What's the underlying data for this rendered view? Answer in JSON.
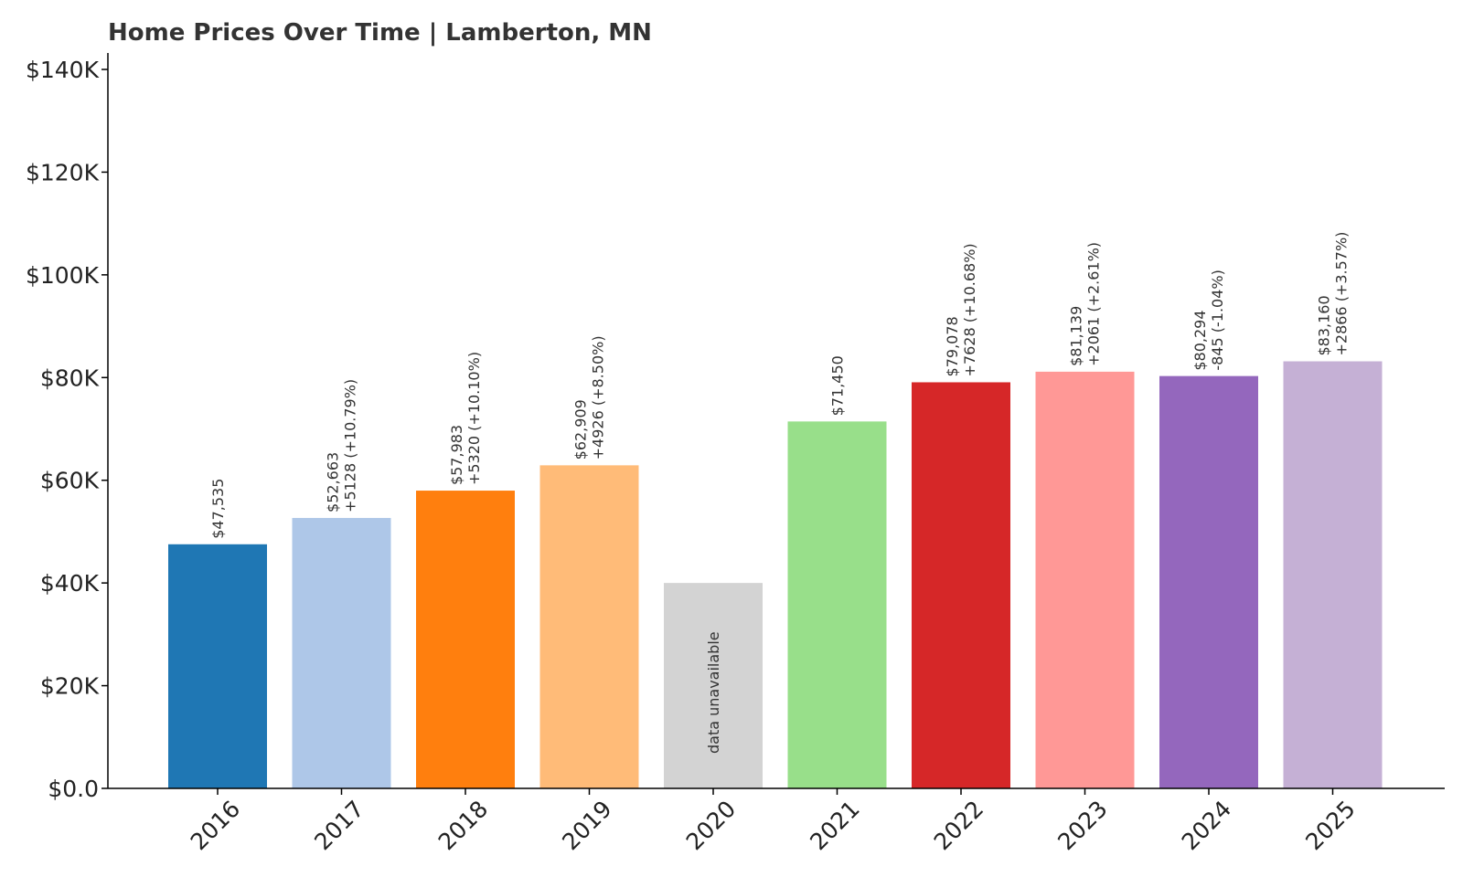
{
  "chart_data": {
    "type": "bar",
    "title": "Home Prices Over Time | Lamberton, MN",
    "xlabel": "",
    "ylabel": "",
    "ylim": [
      0,
      140000
    ],
    "yticks": [
      {
        "value": 0,
        "label": "$0.0"
      },
      {
        "value": 20000,
        "label": "$20K"
      },
      {
        "value": 40000,
        "label": "$40K"
      },
      {
        "value": 60000,
        "label": "$60K"
      },
      {
        "value": 80000,
        "label": "$80K"
      },
      {
        "value": 100000,
        "label": "$100K"
      },
      {
        "value": 120000,
        "label": "$120K"
      },
      {
        "value": 140000,
        "label": "$140K"
      }
    ],
    "grid": false,
    "categories": [
      "2016",
      "2017",
      "2018",
      "2019",
      "2020",
      "2021",
      "2022",
      "2023",
      "2024",
      "2025"
    ],
    "bars": [
      {
        "category": "2016",
        "value": 47535,
        "color": "#1f77b4",
        "label_value": "$47,535",
        "label_change": ""
      },
      {
        "category": "2017",
        "value": 52663,
        "color": "#aec7e8",
        "label_value": "$52,663",
        "label_change": "+5128 (+10.79%)"
      },
      {
        "category": "2018",
        "value": 57983,
        "color": "#ff7f0e",
        "label_value": "$57,983",
        "label_change": "+5320 (+10.10%)"
      },
      {
        "category": "2019",
        "value": 62909,
        "color": "#ffbb78",
        "label_value": "$62,909",
        "label_change": "+4926 (+8.50%)"
      },
      {
        "category": "2020",
        "value": 40000,
        "color": "#d3d3d3",
        "unavailable": true,
        "unavailable_label": "data unavailable"
      },
      {
        "category": "2021",
        "value": 71450,
        "color": "#98df8a",
        "label_value": "$71,450",
        "label_change": ""
      },
      {
        "category": "2022",
        "value": 79078,
        "color": "#d62728",
        "label_value": "$79,078",
        "label_change": "+7628 (+10.68%)"
      },
      {
        "category": "2023",
        "value": 81139,
        "color": "#ff9896",
        "label_value": "$81,139",
        "label_change": "+2061 (+2.61%)"
      },
      {
        "category": "2024",
        "value": 80294,
        "color": "#9467bd",
        "label_value": "$80,294",
        "label_change": "-845 (-1.04%)"
      },
      {
        "category": "2025",
        "value": 83160,
        "color": "#c5b0d5",
        "label_value": "$83,160",
        "label_change": "+2866 (+3.57%)"
      }
    ]
  }
}
